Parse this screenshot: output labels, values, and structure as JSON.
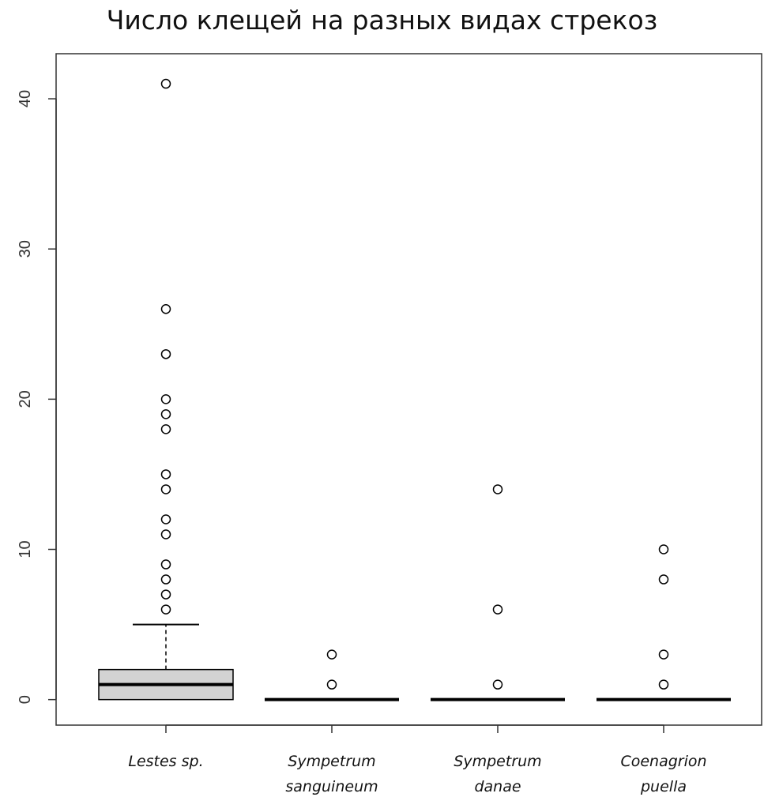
{
  "chart_data": {
    "type": "boxplot",
    "title": "Число клещей на разных видах стрекоз",
    "xlabel": "",
    "ylabel": "",
    "ylim": [
      -1.7,
      43.0
    ],
    "yticks": [
      0,
      10,
      20,
      30,
      40
    ],
    "yticks_rotated": true,
    "grid": false,
    "box_fill": "#d3d3d3",
    "line_color": "#000000",
    "categories": [
      [
        "Lestes sp."
      ],
      [
        "Sympetrum",
        "sanguineum"
      ],
      [
        "Sympetrum",
        "danae"
      ],
      [
        "Coenagrion",
        "puella"
      ]
    ],
    "boxes": [
      {
        "q1": 0,
        "median": 1,
        "q3": 2,
        "whisker_low": 0,
        "whisker_high": 5,
        "outliers": [
          6,
          7,
          8,
          9,
          11,
          12,
          14,
          15,
          18,
          19,
          20,
          23,
          26,
          41
        ]
      },
      {
        "q1": 0,
        "median": 0,
        "q3": 0,
        "whisker_low": 0,
        "whisker_high": 0,
        "outliers": [
          1,
          3
        ]
      },
      {
        "q1": 0,
        "median": 0,
        "q3": 0,
        "whisker_low": 0,
        "whisker_high": 0,
        "outliers": [
          1,
          6,
          14
        ]
      },
      {
        "q1": 0,
        "median": 0,
        "q3": 0,
        "whisker_low": 0,
        "whisker_high": 0,
        "outliers": [
          1,
          3,
          8,
          10
        ]
      }
    ]
  }
}
